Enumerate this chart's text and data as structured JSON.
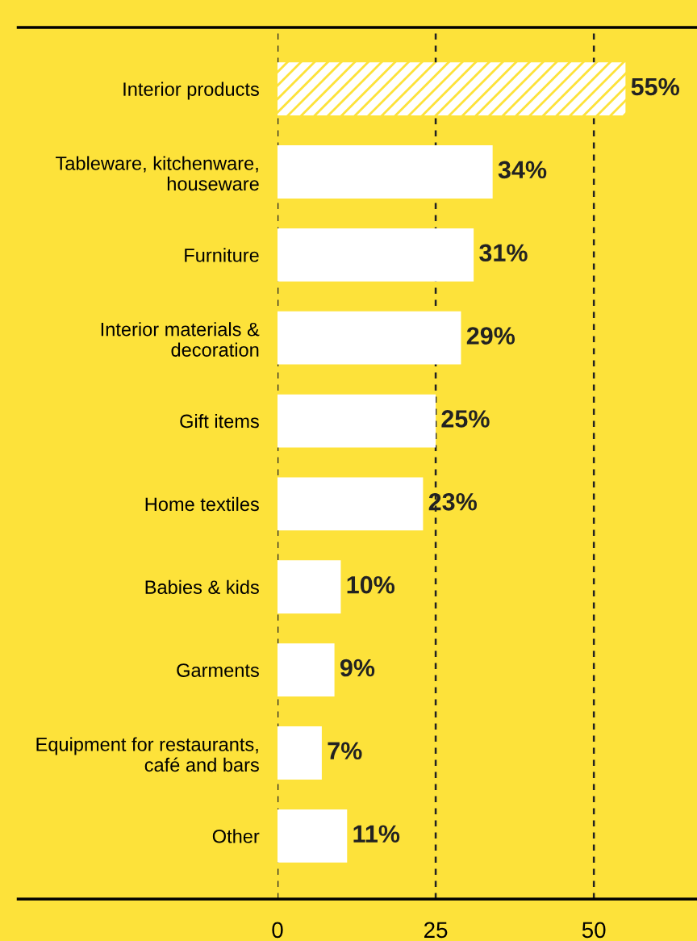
{
  "chart_data": {
    "type": "bar",
    "orientation": "horizontal",
    "categories": [
      "Interior products",
      "Tableware, kitchenware,\nhouseware",
      "Furniture",
      "Interior materials &\ndecoration",
      "Gift items",
      "Home textiles",
      "Babies & kids",
      "Garments",
      "Equipment for restaurants,\ncafé and bars",
      "Other"
    ],
    "values": [
      55,
      34,
      31,
      29,
      25,
      23,
      10,
      9,
      7,
      11
    ],
    "value_labels": [
      "55%",
      "34%",
      "31%",
      "29%",
      "25%",
      "23%",
      "10%",
      "9%",
      "7%",
      "11%"
    ],
    "color": "#ffffff",
    "xlim": [
      0,
      66.3
    ],
    "xticks": [
      0,
      25,
      50
    ],
    "grid": "x"
  }
}
